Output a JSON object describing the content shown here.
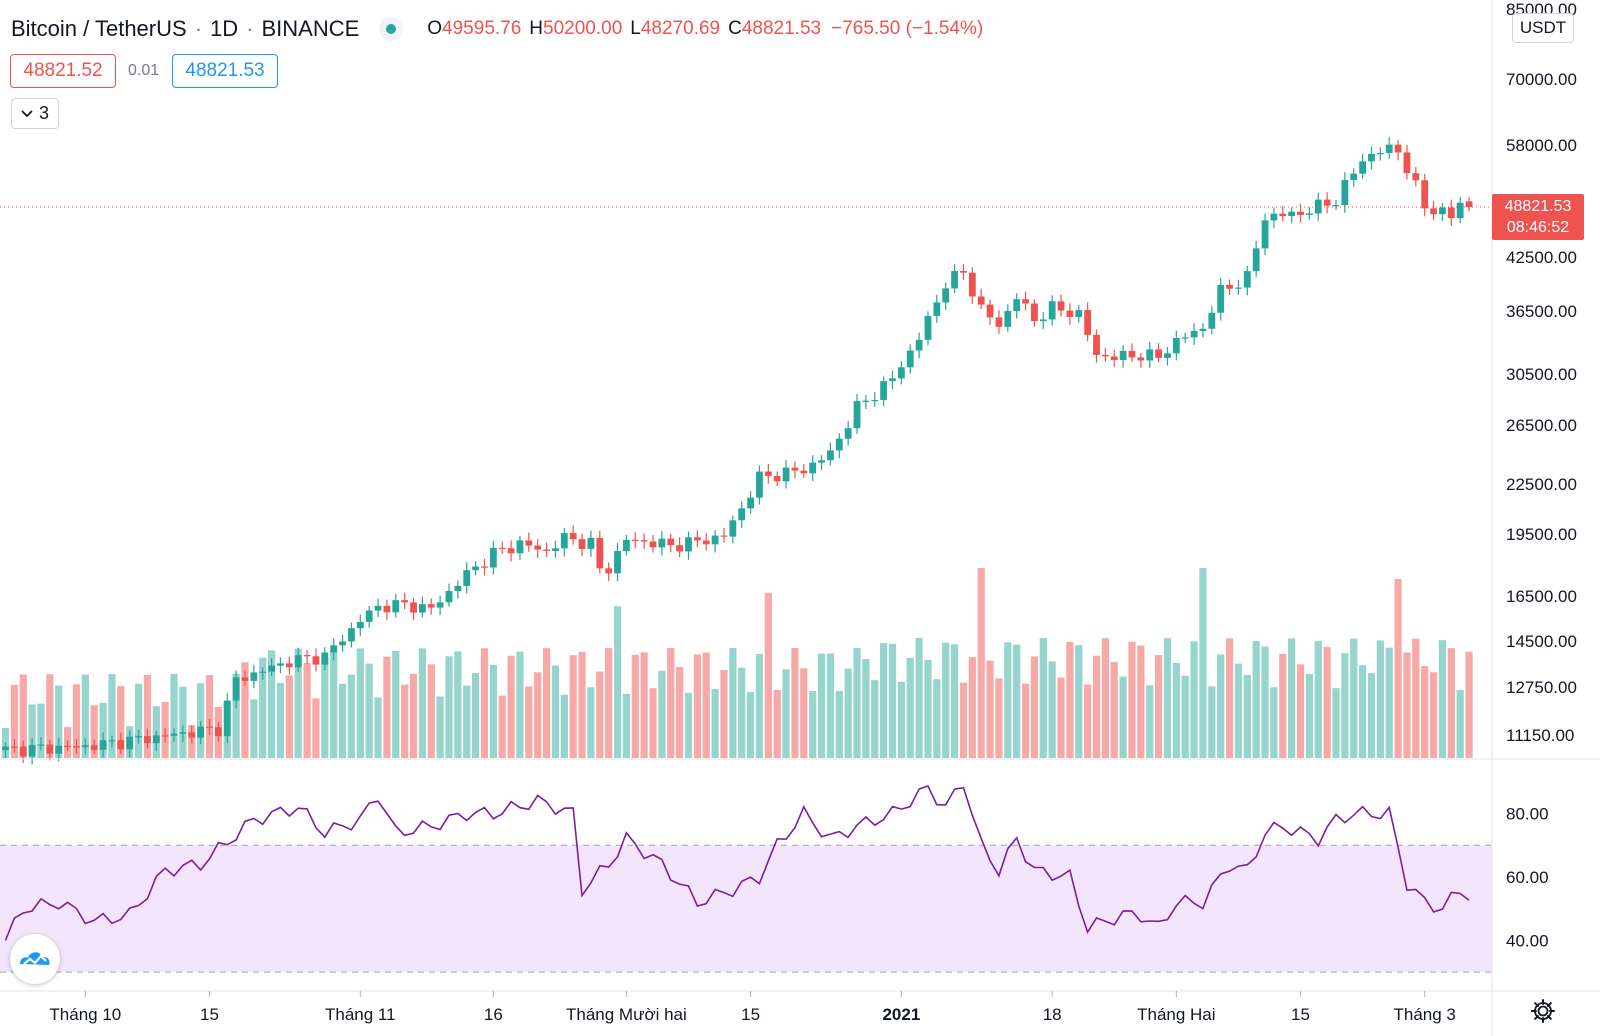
{
  "header": {
    "symbol": "Bitcoin / TetherUS",
    "interval": "1D",
    "exchange": "BINANCE",
    "ohlc": {
      "o_label": "O",
      "o": "49595.76",
      "h_label": "H",
      "h": "50200.00",
      "l_label": "L",
      "l": "48270.69",
      "c_label": "C",
      "c": "48821.53",
      "change": "−765.50 (−1.54%)"
    }
  },
  "quote": {
    "bid": "48821.52",
    "spread": "0.01",
    "ask": "48821.53"
  },
  "indicators_toggle": {
    "count": "3"
  },
  "price_scale": {
    "unit": "USDT"
  },
  "last_price": {
    "value": "48821.53",
    "countdown": "08:46:52"
  },
  "colors": {
    "up": "#26a69a",
    "down": "#ef5350",
    "up_vol": "#95d5cd",
    "down_vol": "#f7a9a7",
    "rsi": "#7b1fa2",
    "rsi_band": "#f3e5fc"
  },
  "chart_data": [
    {
      "type": "candlestick",
      "price_axis_ticks": [
        "85000.00",
        "70000.00",
        "58000.00",
        "42500.00",
        "36500.00",
        "30500.00",
        "26500.00",
        "22500.00",
        "19500.00",
        "16500.00",
        "14500.00",
        "12750.00",
        "11150.00"
      ],
      "price_axis_values": [
        85000,
        70000,
        58000,
        42500,
        36500,
        30500,
        26500,
        22500,
        19500,
        16500,
        14500,
        12750,
        11150
      ],
      "time_axis": [
        {
          "label": "Tháng 10",
          "bar": 9
        },
        {
          "label": "15",
          "bar": 23
        },
        {
          "label": "Tháng 11",
          "bar": 40
        },
        {
          "label": "16",
          "bar": 55
        },
        {
          "label": "Tháng Mười hai",
          "bar": 70
        },
        {
          "label": "15",
          "bar": 84
        },
        {
          "label": "2021",
          "bar": 101
        },
        {
          "label": "18",
          "bar": 118
        },
        {
          "label": "Tháng Hai",
          "bar": 132
        },
        {
          "label": "15",
          "bar": 146
        },
        {
          "label": "Tháng 3",
          "bar": 160
        }
      ],
      "series": [
        {
          "name": "Volume"
        },
        {
          "name": "RSI",
          "ticks": [
            "80.00",
            "60.00",
            "40.00"
          ],
          "band": [
            70,
            30
          ]
        }
      ]
    }
  ]
}
